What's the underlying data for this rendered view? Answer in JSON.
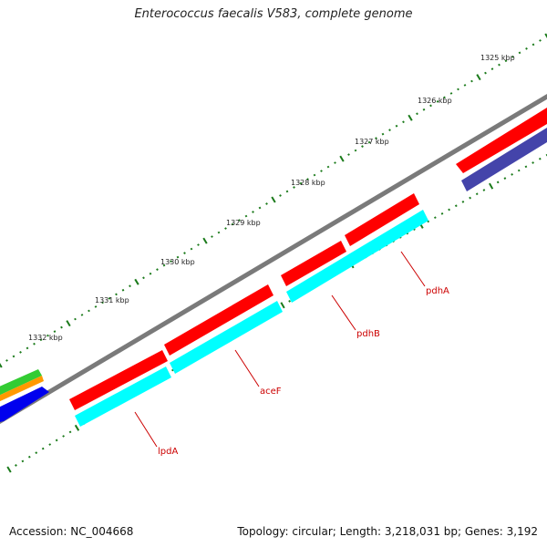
{
  "title": "Enterococcus faecalis V583, complete genome",
  "footer": {
    "accession": "Accession: NC_004668",
    "stats": "Topology: circular; Length: 3,218,031 bp; Genes: 3,192"
  },
  "scale_labels": [
    "1325 kbp",
    "1326 kbp",
    "1327 kbp",
    "1328 kbp",
    "1329 kbp",
    "1330 kbp",
    "1331 kbp",
    "1332 kbp"
  ],
  "gene_labels": [
    "pdhA",
    "pdhB",
    "aceF",
    "lpdA"
  ],
  "colors": {
    "backbone": "#7a7a7a",
    "cds_forward": "#ff0000",
    "cds_track2": "#00ffff",
    "tick": "#1a7a1a",
    "label": "#cc0000",
    "other_green": "#33cc33",
    "other_orange": "#ff9900",
    "other_blue": "#0000ee",
    "other_navy": "#4444aa"
  }
}
